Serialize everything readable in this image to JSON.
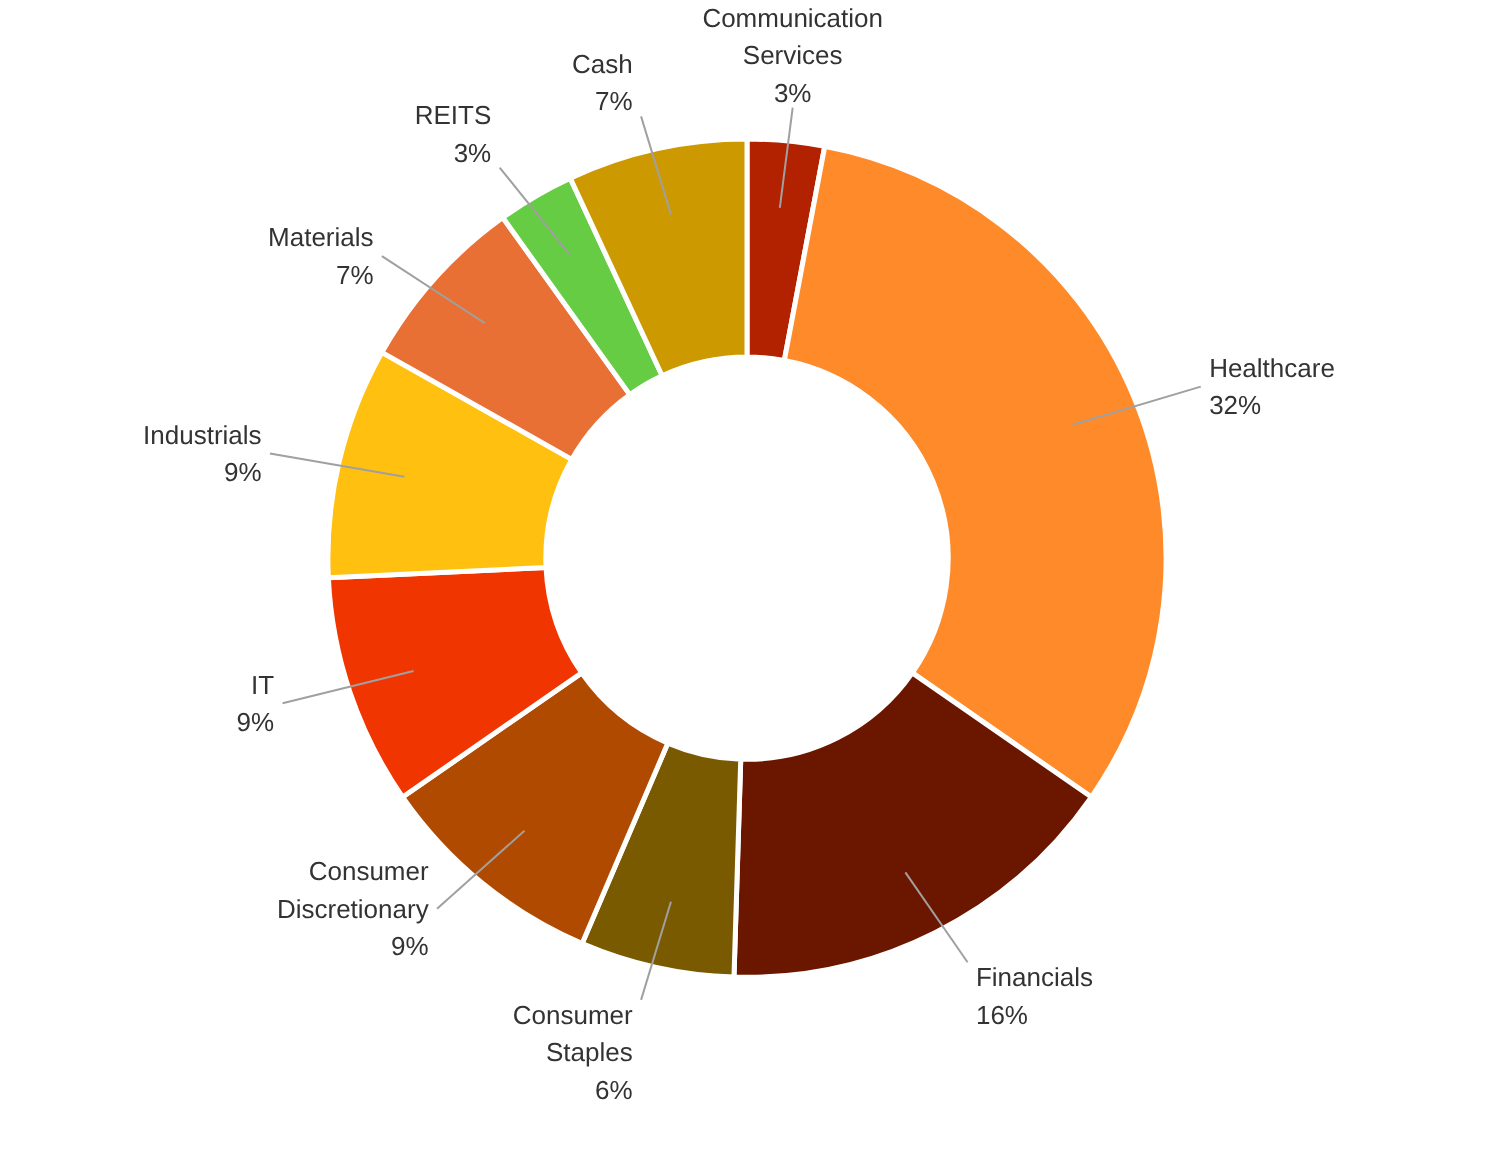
{
  "chart_data": {
    "type": "donut",
    "categories": [
      "Communication Services",
      "Healthcare",
      "Financials",
      "Consumer Staples",
      "Consumer Discretionary",
      "IT",
      "Industrials",
      "Materials",
      "REITS",
      "Cash"
    ],
    "values": [
      3,
      32,
      16,
      6,
      9,
      9,
      9,
      7,
      3,
      7
    ],
    "value_labels": [
      "3%",
      "32%",
      "16%",
      "6%",
      "9%",
      "9%",
      "9%",
      "7%",
      "3%",
      "7%"
    ],
    "colors": [
      "#b22200",
      "#ff8a2a",
      "#6b1700",
      "#7a5a00",
      "#b04a00",
      "#f03500",
      "#ffc010",
      "#e87035",
      "#66cc44",
      "#cc9900"
    ]
  }
}
